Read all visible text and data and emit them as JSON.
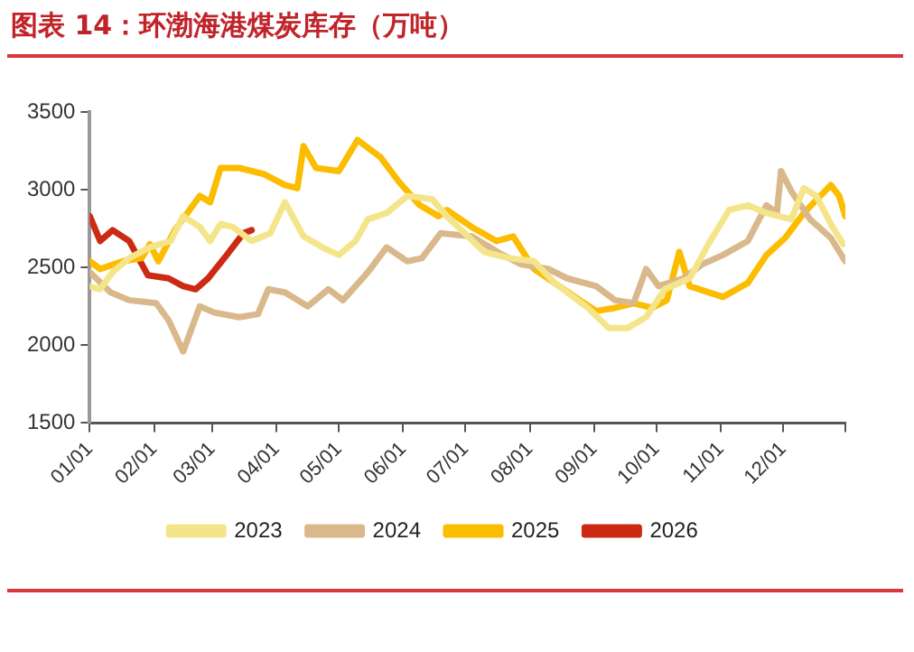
{
  "chart_data": {
    "type": "line",
    "title": "图表 14：环渤海港煤炭库存（万吨）",
    "xlim": [
      "--01-01",
      "--12-31"
    ],
    "xticks": [
      {
        "value": "--01-01",
        "label": "01/01"
      },
      {
        "value": "--02-01",
        "label": "02/01"
      },
      {
        "value": "--03-01",
        "label": "03/01"
      },
      {
        "value": "--04-01",
        "label": "04/01"
      },
      {
        "value": "--05-01",
        "label": "05/01"
      },
      {
        "value": "--06-01",
        "label": "06/01"
      },
      {
        "value": "--07-01",
        "label": "07/01"
      },
      {
        "value": "--08-01",
        "label": "08/01"
      },
      {
        "value": "--09-01",
        "label": "09/01"
      },
      {
        "value": "--10-01",
        "label": "10/01"
      },
      {
        "value": "--11-01",
        "label": "11/01"
      },
      {
        "value": "--12-01",
        "label": "12/01"
      },
      {
        "value": "--12-31",
        "label": null
      }
    ],
    "ylim": [
      1500,
      3500
    ],
    "yticks": [
      1500,
      2000,
      2500,
      3000,
      3500
    ],
    "grid": false,
    "legend": "bottom",
    "marker": "none",
    "line_style": "solid",
    "series": [
      {
        "name": "2023",
        "color": "#f5e58a",
        "x": [
          "--01-01",
          "--01-06",
          "--01-12",
          "--01-20",
          "--01-30",
          "--02-09",
          "--02-15",
          "--02-23",
          "--02-28",
          "--03-05",
          "--03-11",
          "--03-20",
          "--03-29",
          "--04-05",
          "--04-14",
          "--04-23",
          "--05-01",
          "--05-09",
          "--05-15",
          "--05-24",
          "--06-03",
          "--06-15",
          "--06-22",
          "--07-10",
          "--07-22",
          "--08-03",
          "--08-13",
          "--08-29",
          "--09-08",
          "--09-17",
          "--09-26",
          "--10-05",
          "--10-17",
          "--10-26",
          "--11-05",
          "--11-14",
          "--11-23",
          "--12-05",
          "--12-11",
          "--12-17",
          "--12-24",
          "--12-30"
        ],
        "values": [
          2380,
          2360,
          2470,
          2560,
          2630,
          2670,
          2830,
          2760,
          2670,
          2780,
          2760,
          2670,
          2720,
          2920,
          2700,
          2630,
          2580,
          2670,
          2810,
          2850,
          2960,
          2940,
          2830,
          2600,
          2560,
          2540,
          2400,
          2240,
          2110,
          2110,
          2180,
          2360,
          2430,
          2650,
          2870,
          2900,
          2850,
          2810,
          3010,
          2960,
          2780,
          2650
        ]
      },
      {
        "name": "2024",
        "color": "#d9b98c",
        "x": [
          "--01-01",
          "--01-11",
          "--01-20",
          "--02-02",
          "--02-08",
          "--02-15",
          "--02-23",
          "--03-02",
          "--03-14",
          "--03-23",
          "--03-28",
          "--04-05",
          "--04-16",
          "--04-26",
          "--05-03",
          "--05-15",
          "--05-24",
          "--06-03",
          "--06-10",
          "--06-19",
          "--07-04",
          "--07-19",
          "--07-28",
          "--08-10",
          "--08-19",
          "--09-02",
          "--09-11",
          "--09-20",
          "--09-26",
          "--10-02",
          "--10-14",
          "--10-23",
          "--11-02",
          "--11-14",
          "--11-23",
          "--11-28",
          "--11-30",
          "--12-05",
          "--12-14",
          "--12-24",
          "--12-31"
        ],
        "values": [
          2470,
          2340,
          2290,
          2270,
          2160,
          1960,
          2250,
          2210,
          2180,
          2200,
          2360,
          2340,
          2250,
          2360,
          2290,
          2470,
          2630,
          2540,
          2560,
          2720,
          2700,
          2580,
          2520,
          2490,
          2430,
          2380,
          2290,
          2270,
          2490,
          2380,
          2430,
          2520,
          2580,
          2670,
          2900,
          2850,
          3120,
          2990,
          2810,
          2690,
          2540
        ]
      },
      {
        "name": "2025",
        "color": "#fcbc00",
        "x": [
          "--01-01",
          "--01-06",
          "--01-17",
          "--01-26",
          "--01-30",
          "--02-03",
          "--02-11",
          "--02-23",
          "--02-28",
          "--03-05",
          "--03-14",
          "--03-26",
          "--04-05",
          "--04-11",
          "--04-14",
          "--04-20",
          "--05-01",
          "--05-10",
          "--05-21",
          "--05-30",
          "--06-09",
          "--06-18",
          "--06-22",
          "--07-04",
          "--07-16",
          "--07-24",
          "--08-03",
          "--08-13",
          "--08-25",
          "--09-02",
          "--09-11",
          "--09-20",
          "--09-29",
          "--10-06",
          "--10-12",
          "--10-17",
          "--11-02",
          "--11-14",
          "--11-23",
          "--12-02",
          "--12-11",
          "--12-24",
          "--12-28",
          "--12-31"
        ],
        "values": [
          2540,
          2490,
          2540,
          2560,
          2650,
          2540,
          2740,
          2960,
          2920,
          3140,
          3140,
          3100,
          3030,
          3010,
          3280,
          3140,
          3120,
          3320,
          3210,
          3050,
          2900,
          2830,
          2870,
          2760,
          2670,
          2700,
          2490,
          2400,
          2290,
          2220,
          2240,
          2270,
          2240,
          2290,
          2600,
          2380,
          2310,
          2400,
          2580,
          2690,
          2850,
          3030,
          2960,
          2830
        ]
      },
      {
        "name": "2026",
        "color": "#cc2a12",
        "x": [
          "--01-01",
          "--01-06",
          "--01-12",
          "--01-20",
          "--01-29",
          "--02-08",
          "--02-15",
          "--02-21",
          "--02-27",
          "--03-08",
          "--03-16",
          "--03-20"
        ],
        "values": [
          2830,
          2670,
          2740,
          2670,
          2450,
          2430,
          2380,
          2360,
          2430,
          2580,
          2720,
          2740
        ]
      }
    ]
  }
}
